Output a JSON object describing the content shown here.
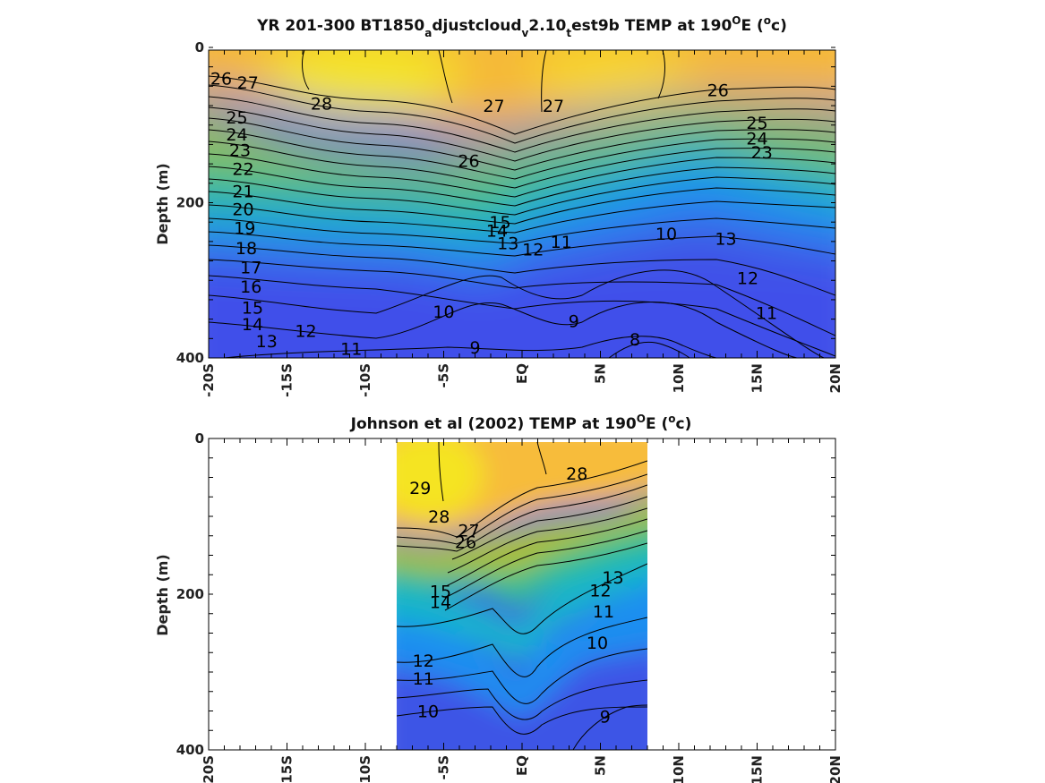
{
  "chart_data": [
    {
      "type": "heatmap",
      "title_parts": [
        "YR 201-300 BT1850",
        "a",
        "djustcloud",
        "v",
        "2.10",
        "t",
        "est9b TEMP at 190",
        "O",
        "E (",
        "o",
        "c)"
      ],
      "xlabel": "",
      "ylabel": "Depth (m)",
      "x_ticks": [
        -20,
        -15,
        -10,
        -5,
        0,
        5,
        10,
        15,
        20
      ],
      "x_tick_labels": [
        "-20S",
        "-15S",
        "-10S",
        "-5S",
        "EQ",
        "5N",
        "10N",
        "15N",
        "20N"
      ],
      "xlim": [
        -20,
        20
      ],
      "y_ticks": [
        0,
        200,
        400
      ],
      "y_tick_labels": [
        "0",
        "200",
        "400"
      ],
      "ylim": [
        400,
        0
      ],
      "data_x_range": [
        -20,
        20
      ],
      "colormap": "parula",
      "contour_levels": [
        8,
        9,
        10,
        11,
        12,
        13,
        14,
        15,
        16,
        17,
        18,
        19,
        20,
        21,
        22,
        23,
        24,
        25,
        26,
        27,
        28
      ],
      "contour_labels": [
        {
          "text": "26",
          "x": -19.2,
          "y": 40
        },
        {
          "text": "27",
          "x": -17.5,
          "y": 45
        },
        {
          "text": "28",
          "x": -12.8,
          "y": 72
        },
        {
          "text": "27",
          "x": -1.8,
          "y": 75
        },
        {
          "text": "27",
          "x": 2.0,
          "y": 75
        },
        {
          "text": "26",
          "x": 12.5,
          "y": 55
        },
        {
          "text": "25",
          "x": -18.2,
          "y": 90
        },
        {
          "text": "24",
          "x": -18.2,
          "y": 112
        },
        {
          "text": "23",
          "x": -18.0,
          "y": 132
        },
        {
          "text": "22",
          "x": -17.8,
          "y": 156
        },
        {
          "text": "21",
          "x": -17.8,
          "y": 185
        },
        {
          "text": "20",
          "x": -17.8,
          "y": 208
        },
        {
          "text": "19",
          "x": -17.7,
          "y": 232
        },
        {
          "text": "18",
          "x": -17.6,
          "y": 258
        },
        {
          "text": "17",
          "x": -17.3,
          "y": 283
        },
        {
          "text": "16",
          "x": -17.3,
          "y": 308
        },
        {
          "text": "15",
          "x": -17.2,
          "y": 335
        },
        {
          "text": "14",
          "x": -17.2,
          "y": 356
        },
        {
          "text": "13",
          "x": -16.3,
          "y": 378
        },
        {
          "text": "12",
          "x": -13.8,
          "y": 365
        },
        {
          "text": "11",
          "x": -10.9,
          "y": 388
        },
        {
          "text": "26",
          "x": -3.4,
          "y": 146
        },
        {
          "text": "15",
          "x": -1.4,
          "y": 225
        },
        {
          "text": "14",
          "x": -1.6,
          "y": 236
        },
        {
          "text": "13",
          "x": -0.9,
          "y": 252
        },
        {
          "text": "12",
          "x": 0.7,
          "y": 260
        },
        {
          "text": "11",
          "x": 2.5,
          "y": 250
        },
        {
          "text": "10",
          "x": 9.2,
          "y": 240
        },
        {
          "text": "10",
          "x": -5.0,
          "y": 340
        },
        {
          "text": "9",
          "x": -3.0,
          "y": 386
        },
        {
          "text": "9",
          "x": 3.3,
          "y": 352
        },
        {
          "text": "8",
          "x": 7.2,
          "y": 376
        },
        {
          "text": "25",
          "x": 15.0,
          "y": 97
        },
        {
          "text": "24",
          "x": 15.0,
          "y": 117
        },
        {
          "text": "23",
          "x": 15.3,
          "y": 135
        },
        {
          "text": "13",
          "x": 13.0,
          "y": 246
        },
        {
          "text": "12",
          "x": 14.4,
          "y": 297
        },
        {
          "text": "11",
          "x": 15.6,
          "y": 342
        }
      ]
    },
    {
      "type": "heatmap",
      "title_parts": [
        "Johnson et al (2002) TEMP at 190",
        "O",
        "E (",
        "o",
        "c)"
      ],
      "xlabel": "",
      "ylabel": "Depth (m)",
      "x_ticks": [
        -20,
        -15,
        -10,
        -5,
        0,
        5,
        10,
        15,
        20
      ],
      "x_tick_labels": [
        "-20S",
        "-15S",
        "-10S",
        "-5S",
        "EQ",
        "5N",
        "10N",
        "15N",
        "20N"
      ],
      "xlim": [
        -20,
        20
      ],
      "y_ticks": [
        0,
        200,
        400
      ],
      "y_tick_labels": [
        "0",
        "200",
        "400"
      ],
      "ylim": [
        400,
        0
      ],
      "data_x_range": [
        -8,
        8
      ],
      "colormap": "parula",
      "contour_levels": [
        9,
        10,
        11,
        12,
        13,
        14,
        15,
        16,
        17,
        18,
        19,
        20,
        21,
        22,
        23,
        24,
        25,
        26,
        27,
        28,
        29
      ],
      "contour_labels": [
        {
          "text": "29",
          "x": -6.5,
          "y": 63
        },
        {
          "text": "28",
          "x": -5.3,
          "y": 100
        },
        {
          "text": "27",
          "x": -3.4,
          "y": 118
        },
        {
          "text": "26",
          "x": -3.6,
          "y": 133
        },
        {
          "text": "28",
          "x": 3.5,
          "y": 45
        },
        {
          "text": "13",
          "x": 5.8,
          "y": 178
        },
        {
          "text": "12",
          "x": 5.0,
          "y": 195
        },
        {
          "text": "11",
          "x": 5.2,
          "y": 222
        },
        {
          "text": "10",
          "x": 4.8,
          "y": 262
        },
        {
          "text": "12",
          "x": -6.3,
          "y": 285
        },
        {
          "text": "11",
          "x": -6.3,
          "y": 308
        },
        {
          "text": "10",
          "x": -6.0,
          "y": 350
        },
        {
          "text": "9",
          "x": 5.3,
          "y": 357
        },
        {
          "text": "14",
          "x": -5.2,
          "y": 210
        },
        {
          "text": "15",
          "x": -5.2,
          "y": 196
        }
      ]
    }
  ]
}
